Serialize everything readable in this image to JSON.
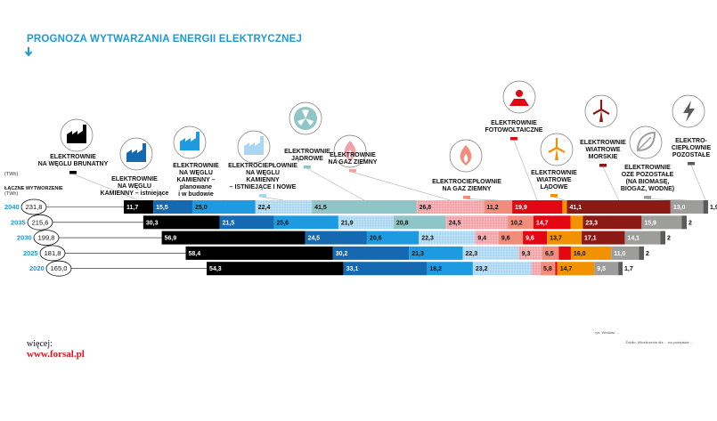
{
  "title": "PROGNOZA WYTWARZANIA ENERGII ELEKTRYCZNEJ",
  "footer": {
    "more_label": "więcej:",
    "more_link": "www.forsal.pl",
    "credit": "rys. Wiesław ...",
    "source": "Źródło: Wiceliczenie dla ... na podstawie ..."
  },
  "colors": {
    "accent": "#1a9ad6",
    "brand_red": "#d8131e"
  },
  "chart_data": {
    "type": "bar",
    "stacked": true,
    "orientation": "horizontal",
    "unit_label": "(TWh)",
    "total_header": "ŁĄCZNE WYTWORZENIE",
    "total_header_unit": "(TWh)",
    "years": [
      "2040",
      "2035",
      "2030",
      "2025",
      "2020"
    ],
    "totals": [
      "231,8",
      "215,6",
      "199,8",
      "181,8",
      "165,0"
    ],
    "series": [
      {
        "name": "ELEKTROWNIE NA WĘGIEL BRUNATNY",
        "icon": "factory-icon",
        "color": "#000000",
        "text_color": "#ffffff",
        "pattern": "none",
        "values": [
          11.7,
          30.3,
          56.9,
          58.4,
          54.3
        ],
        "labels": [
          "11,7",
          "30,3",
          "56,9",
          "58,4",
          "54,3"
        ]
      },
      {
        "name": "ELEKTROWNIE NA WĘGIEL KAMIENNY – istniejące",
        "icon": "factory-icon",
        "color": "#1469b0",
        "text_color": "#ffffff",
        "pattern": "none",
        "values": [
          15.5,
          21.5,
          24.5,
          30.2,
          33.1
        ],
        "labels": [
          "15,5",
          "21,5",
          "24,5",
          "30,2",
          "33,1"
        ]
      },
      {
        "name": "ELEKTROWNIE NA WĘGIEL KAMIENNY – planowane i w budowie",
        "icon": "factory-icon",
        "color": "#1e9be0",
        "text_color": "#111111",
        "pattern": "none",
        "values": [
          25.0,
          25.6,
          20.6,
          21.3,
          18.2
        ],
        "labels": [
          "25,0",
          "25,6",
          "20,6",
          "21,3",
          "18,2"
        ]
      },
      {
        "name": "ELEKTROCIEPŁOWNIE NA WĘGIEL KAMIENNY – ISTNIEJĄCE I NOWE",
        "icon": "factory-icon",
        "color": "#a9d6f2",
        "text_color": "#111111",
        "pattern": "grid",
        "values": [
          22.4,
          21.9,
          22.3,
          22.3,
          23.2
        ],
        "labels": [
          "22,4",
          "21,9",
          "22,3",
          "22,3",
          "23,2"
        ]
      },
      {
        "name": "ELEKTROWNIE JĄDROWE",
        "icon": "radiation-icon",
        "color": "#8fc5c6",
        "text_color": "#111111",
        "pattern": "none",
        "values": [
          41.5,
          20.8,
          0,
          0,
          0
        ],
        "labels": [
          "41,5",
          "20,8",
          "",
          "",
          ""
        ]
      },
      {
        "name": "ELEKTROWNIE NA GAZ ZIEMNY",
        "icon": "flame-icon",
        "color": "#f2a1a7",
        "text_color": "#111111",
        "pattern": "grid",
        "values": [
          26.8,
          24.5,
          9.4,
          9.3,
          3.7
        ],
        "labels": [
          "26,8",
          "24,5",
          "9,4",
          "9,3",
          "3,7"
        ]
      },
      {
        "name": "ELEKTROCIEPŁOWNIE NA GAZ ZIEMNY",
        "icon": "flame-icon",
        "color": "#f28d7c",
        "text_color": "#111111",
        "pattern": "none",
        "values": [
          11.2,
          10.2,
          9.6,
          6.5,
          5.8
        ],
        "labels": [
          "11,2",
          "10,2",
          "9,6",
          "6,5",
          "5,8"
        ]
      },
      {
        "name": "ELEKTROWNIE FOTOWOLTAICZNE",
        "icon": "solar-icon",
        "color": "#e30613",
        "text_color": "#ffffff",
        "pattern": "none",
        "values": [
          19.9,
          14.7,
          9.6,
          4.8,
          0.8
        ],
        "labels": [
          "19,9",
          "14,7",
          "9,6",
          "4,8",
          "0,8"
        ]
      },
      {
        "name": "ELEKTROWNIE WIATROWE LĄDOWE",
        "icon": "wind-turbine-icon",
        "color": "#f39200",
        "text_color": "#111111",
        "pattern": "none",
        "values": [
          1.8,
          4.9,
          13.7,
          16.0,
          14.7
        ],
        "labels": [
          "1,8",
          "4,9",
          "13,7",
          "16,0",
          "14,7"
        ]
      },
      {
        "name": "ELEKTROWNIE WIATROWE MORSKIE",
        "icon": "wind-turbine-icon",
        "color": "#8b1a14",
        "text_color": "#ffffff",
        "pattern": "none",
        "values": [
          41.1,
          23.3,
          17.1,
          0,
          0
        ],
        "labels": [
          "41,1",
          "23,3",
          "17,1",
          "",
          ""
        ]
      },
      {
        "name": "ELEKTROWNIE OZE POZOSTAŁE (NA BIOMASĘ, BIOGAZ, WODNE)",
        "icon": "leaf-icon",
        "color": "#9d9d9c",
        "text_color": "#ffffff",
        "pattern": "none",
        "values": [
          13.0,
          15.9,
          14.1,
          11.0,
          9.5
        ],
        "labels": [
          "13,0",
          "15,9",
          "14,1",
          "11,0",
          "9,5"
        ]
      },
      {
        "name": "ELEKTRO-CIEPŁOWNIE POZOSTAŁE",
        "icon": "lightning-icon",
        "color": "#5b5b5b",
        "text_color": "#111111",
        "pattern": "none",
        "values": [
          1.9,
          2,
          2,
          2,
          1.7
        ],
        "labels": [
          "1,9",
          "2",
          "2",
          "2",
          "1,7"
        ]
      }
    ],
    "category_labels": [
      {
        "series": 0,
        "lines": [
          "ELEKTROWNIE",
          "NA WĘGLU BRUNATNY"
        ]
      },
      {
        "series": 1,
        "lines": [
          "ELEKTROWNIE",
          "NA WĘGLU",
          "KAMIENNY – istniejące"
        ]
      },
      {
        "series": 2,
        "lines": [
          "ELEKTROWNIE",
          "NA WĘGLU",
          "KAMIENNY –",
          "planowane",
          "i w budowie"
        ]
      },
      {
        "series": 3,
        "lines": [
          "ELEKTROCIEPŁOWNIE",
          "NA WĘGLU",
          "KAMIENNY",
          "– ISTNIEJĄCE I NOWE"
        ]
      },
      {
        "series": 4,
        "lines": [
          "ELEKTROWNIE",
          "JĄDROWE"
        ]
      },
      {
        "series": 5,
        "lines": [
          "ELEKTROWNIE",
          "NA GAZ ZIEMNY"
        ]
      },
      {
        "series": 6,
        "lines": [
          "ELEKTROCIEPŁOWNIE",
          "NA GAZ ZIEMNY"
        ]
      },
      {
        "series": 7,
        "lines": [
          "ELEKTROWNIE",
          "FOTOWOLTAICZNE"
        ]
      },
      {
        "series": 8,
        "lines": [
          "ELEKTROWNIE",
          "WIATROWE",
          "LĄDOWE"
        ]
      },
      {
        "series": 9,
        "lines": [
          "ELEKTROWNIE",
          "WIATROWE",
          "MORSKIE"
        ]
      },
      {
        "series": 10,
        "lines": [
          "ELEKTROWNIE",
          "OZE POZOSTAŁE",
          "(NA BIOMASĘ,",
          "BIOGAZ, WODNE)"
        ]
      },
      {
        "series": 11,
        "lines": [
          "ELEKTRO-",
          "CIEPŁOWNIE",
          "POZOSTAŁE"
        ]
      }
    ],
    "legend": "top",
    "grid": false
  }
}
